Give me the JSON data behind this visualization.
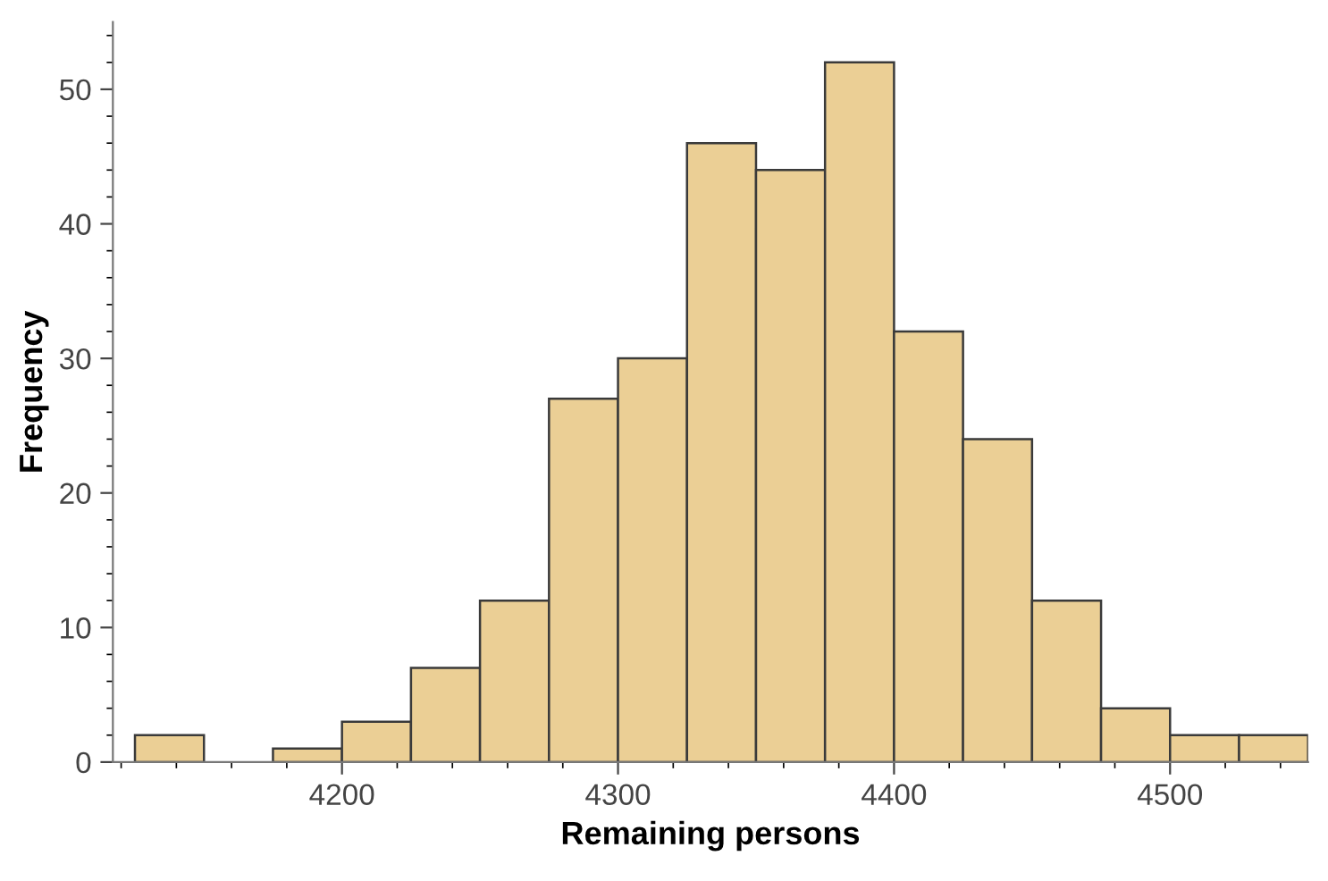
{
  "chart_data": {
    "type": "histogram",
    "xlabel": "Remaining persons",
    "ylabel": "Frequency",
    "bins": [
      4125,
      4150,
      4175,
      4200,
      4225,
      4250,
      4275,
      4300,
      4325,
      4350,
      4375,
      4400,
      4425,
      4450,
      4475,
      4500,
      4525,
      4550
    ],
    "values": [
      2,
      0,
      1,
      3,
      7,
      12,
      27,
      30,
      46,
      44,
      52,
      32,
      24,
      12,
      4,
      2,
      2
    ],
    "color": "#ebcf95",
    "xlim": [
      4117,
      4550
    ],
    "xticks": [
      4200,
      4300,
      4400,
      4500
    ],
    "ylim": [
      0,
      55
    ],
    "yticks": [
      0,
      10,
      20,
      30,
      40,
      50
    ],
    "grid": false
  }
}
